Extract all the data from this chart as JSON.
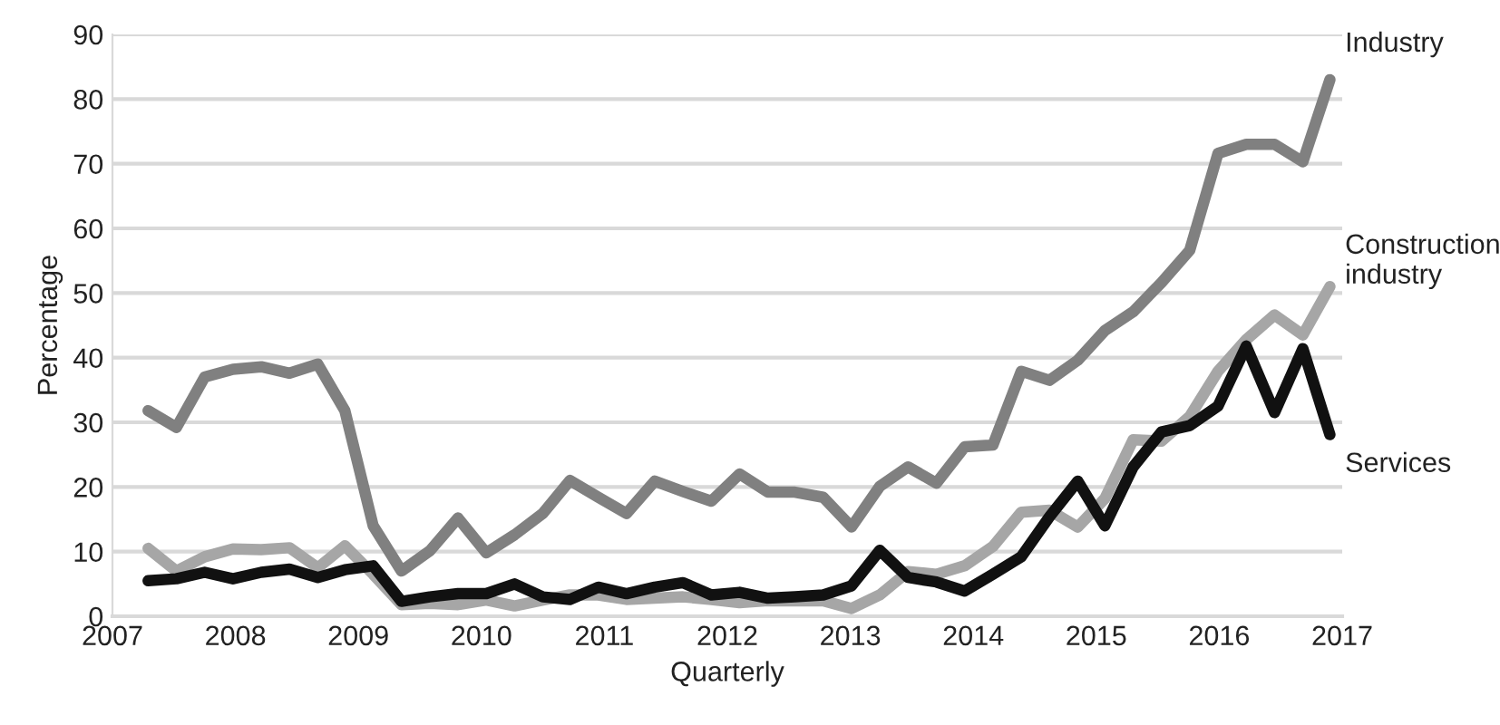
{
  "chart_data": {
    "type": "line",
    "xlabel": "Quarterly",
    "ylabel": "Percentage",
    "x": [
      2007.29,
      2007.52,
      2007.75,
      2007.98,
      2008.21,
      2008.44,
      2008.67,
      2008.89,
      2009.12,
      2009.35,
      2009.58,
      2009.81,
      2010.04,
      2010.27,
      2010.5,
      2010.72,
      2010.95,
      2011.18,
      2011.41,
      2011.64,
      2011.87,
      2012.1,
      2012.33,
      2012.55,
      2012.78,
      2013.01,
      2013.24,
      2013.47,
      2013.7,
      2013.93,
      2014.16,
      2014.39,
      2014.62,
      2014.85,
      2015.07,
      2015.3,
      2015.53,
      2015.76,
      2015.99,
      2016.22,
      2016.45,
      2016.68,
      2016.9
    ],
    "series": [
      {
        "name": "Industry",
        "color": "#808080",
        "values": [
          31.8,
          29.2,
          37,
          38.2,
          38.6,
          37.6,
          39,
          31.8,
          14,
          7,
          10.1,
          15.2,
          9.8,
          12.6,
          15.9,
          21,
          18.4,
          15.9,
          20.9,
          19.3,
          17.8,
          22,
          19.2,
          19.2,
          18.4,
          13.8,
          20.1,
          23.1,
          20.6,
          26.2,
          26.5,
          37.9,
          36.5,
          39.6,
          44.2,
          47.1,
          51.6,
          56.6,
          71.6,
          73,
          73,
          70.3,
          83
        ]
      },
      {
        "name": "Construction\nindustry",
        "color": "#a6a6a6",
        "values": [
          10.5,
          7,
          9.2,
          10.4,
          10.3,
          10.6,
          7.5,
          10.9,
          6.5,
          1.8,
          2,
          1.8,
          2.5,
          1.6,
          2.5,
          3.3,
          3.3,
          2.6,
          2.8,
          3,
          2.6,
          2.1,
          2.4,
          2.4,
          2.4,
          1.2,
          3.3,
          6.9,
          6.5,
          7.8,
          10.8,
          16.1,
          16.4,
          13.8,
          18.2,
          27.3,
          27.1,
          30.9,
          37.9,
          42.8,
          46.6,
          43.5,
          51
        ]
      },
      {
        "name": "Services",
        "color": "#111111",
        "values": [
          5.5,
          5.8,
          6.8,
          5.8,
          6.8,
          7.3,
          6,
          7.2,
          7.8,
          2.3,
          3,
          3.5,
          3.5,
          5,
          3,
          2.6,
          4.5,
          3.5,
          4.5,
          5.2,
          3.3,
          3.7,
          2.8,
          3,
          3.3,
          4.7,
          10.2,
          6,
          5.3,
          3.9,
          6.5,
          9.2,
          15.4,
          20.9,
          14,
          23.1,
          28.5,
          29.5,
          32.5,
          41.8,
          31.5,
          41.4,
          28.1
        ]
      }
    ],
    "xlim": [
      2007,
      2017
    ],
    "xticks": [
      2007,
      2008,
      2009,
      2010,
      2011,
      2012,
      2013,
      2014,
      2015,
      2016,
      2017
    ],
    "ylim": [
      0,
      90
    ],
    "yticks": [
      0,
      10,
      20,
      30,
      40,
      50,
      60,
      70,
      80,
      90
    ],
    "grid": "y",
    "legend": false,
    "marker": "none",
    "line_style": "solid"
  }
}
